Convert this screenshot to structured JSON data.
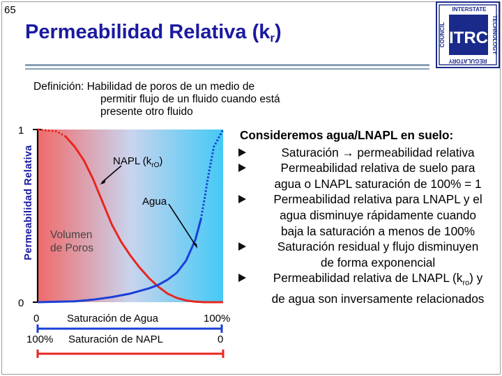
{
  "slide_number": "65",
  "title_main": "Permeabilidad Relativa (k",
  "title_sub": "r",
  "title_end": ")",
  "logo": {
    "top_text": "INTERSTATE",
    "right_text": "TECHNOLOGY",
    "left_text": "COUNCIL",
    "bottom_text": "REGULATORY",
    "center_text": "ITRC",
    "colors": {
      "ink": "#1a2a8a"
    }
  },
  "definition": {
    "label": "Definición:",
    "line1": "Habilidad de poros de un medio de",
    "line2": "permitir flujo de un fluido cuando está",
    "line3": "presente otro fluido"
  },
  "chart_data": {
    "type": "line",
    "y_axis_label": "Permeabilidad Relativa",
    "y_ticks": [
      "1",
      "0"
    ],
    "ylim": [
      0,
      1
    ],
    "x_top_label": "Saturación de Agua",
    "x_top_ticks": [
      "0",
      "100%"
    ],
    "x_bottom_label": "Saturación de NAPL",
    "x_bottom_ticks": [
      "100%",
      "0"
    ],
    "xlim": [
      0,
      100
    ],
    "annotations": {
      "napl_prefix": "NAPL (k",
      "napl_sub": "rO",
      "napl_suffix": ")",
      "water": "Agua",
      "pore_volume_1": "Volumen",
      "pore_volume_2": "de Poros"
    },
    "series": [
      {
        "name": "NAPL",
        "color": "#e8261e",
        "x": [
          0,
          10,
          15,
          20,
          25,
          30,
          35,
          40,
          45,
          50,
          55,
          60,
          65,
          70,
          75,
          80,
          85,
          90,
          95,
          100
        ],
        "y": [
          1.0,
          0.99,
          0.96,
          0.9,
          0.82,
          0.71,
          0.58,
          0.45,
          0.35,
          0.27,
          0.2,
          0.14,
          0.09,
          0.05,
          0.025,
          0.01,
          0.003,
          0.0,
          0.0,
          0.0
        ],
        "dotted_before": 15
      },
      {
        "name": "Agua",
        "color": "#1a3fd6",
        "x": [
          0,
          20,
          30,
          40,
          50,
          60,
          65,
          70,
          75,
          80,
          85,
          88,
          90,
          92,
          95,
          100
        ],
        "y": [
          0.0,
          0.005,
          0.015,
          0.03,
          0.05,
          0.08,
          0.1,
          0.13,
          0.17,
          0.24,
          0.36,
          0.48,
          0.6,
          0.73,
          0.9,
          1.0
        ],
        "dotted_after": 88
      }
    ],
    "colors": {
      "gradient_left": "#f06a6a",
      "gradient_mid": "#c9d4ee",
      "gradient_right": "#43c9f5",
      "bracket_top": "#1a3fd6",
      "bracket_bottom": "#e8261e"
    }
  },
  "bullets": {
    "heading": "Consideremos agua/LNAPL en suelo:",
    "items": [
      {
        "lines": [
          "Saturación → permeabilidad relativa"
        ]
      },
      {
        "lines": [
          "Permeabilidad relativa de suelo para",
          "agua o LNAPL saturación de 100% = 1"
        ]
      },
      {
        "lines": [
          "Permeabilidad relativa para LNAPL y el",
          "agua  disminuye rápidamente cuando",
          "baja la saturación a menos de 100%"
        ]
      },
      {
        "lines": [
          "Saturación residual y flujo disminuyen",
          "de forma exponencial"
        ]
      },
      {
        "lines_rich": {
          "pre": "Permeabilidad relativa de LNAPL (k",
          "sub": "ro",
          "post": ") y",
          "line2": "de agua son inversamente relacionados"
        }
      }
    ]
  }
}
